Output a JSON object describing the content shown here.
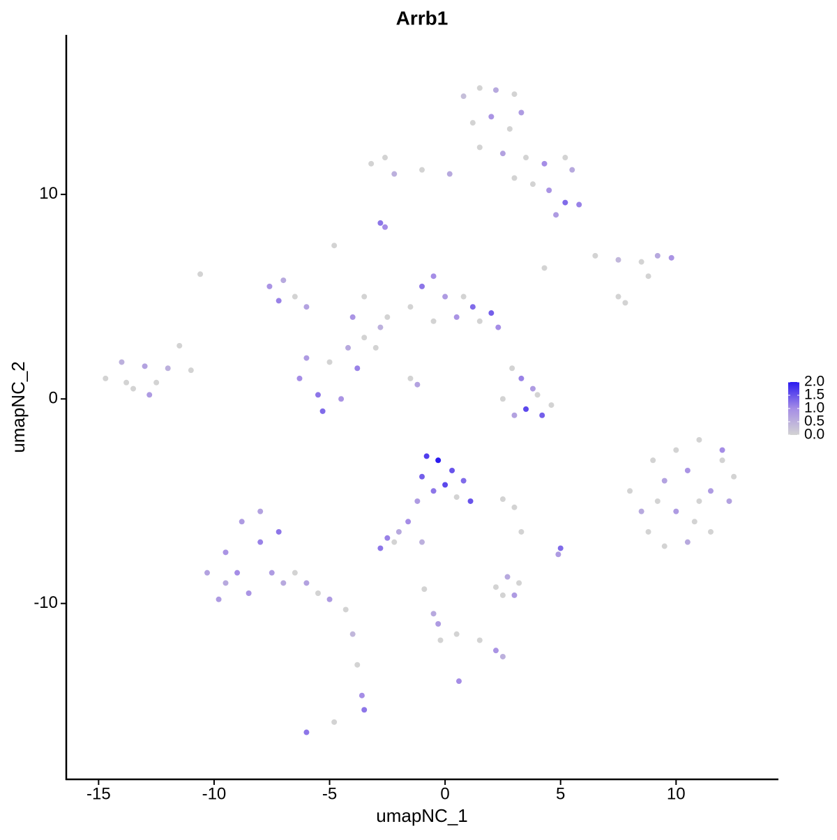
{
  "chart_data": {
    "type": "scatter",
    "title": "Arrb1",
    "x_label": "umapNC_1",
    "y_label": "umapNC_2",
    "xlim": [
      -16.4,
      14.4
    ],
    "ylim": [
      -18.6,
      17.8
    ],
    "xticks": [
      -15,
      -10,
      -5,
      0,
      5,
      10
    ],
    "yticks": [
      -10,
      0,
      10
    ],
    "colorbar": {
      "lim": [
        0,
        2
      ],
      "colors": [
        "#d3d3d3",
        "#a58de6",
        "#2b1bf0"
      ],
      "ticks": [
        {
          "value": 0,
          "label": "0.0"
        },
        0.5,
        {
          "value": 1,
          "label": "1.0"
        },
        1.5,
        {
          "value": 2,
          "label": "2.0"
        }
      ]
    },
    "series": [
      {
        "x": [
          0.8,
          1.5,
          2.2,
          3.0,
          3.3,
          1.2,
          2.0,
          2.8,
          1.5,
          2.5,
          3.5,
          4.3,
          5.2,
          5.5,
          3.8,
          4.5,
          5.2,
          5.8,
          4.8,
          3.0,
          -3.2,
          -2.2,
          -1.0,
          0.2,
          -2.6,
          -2.8,
          -2.6,
          6.5,
          7.5,
          8.5,
          9.2,
          9.8,
          8.8,
          7.8,
          -14.7,
          -14.0,
          -13.5,
          -13.0,
          -12.5,
          -12.0,
          -11.5,
          -11.0,
          -12.8,
          -13.8,
          -7.6,
          -7.0,
          -6.5,
          -7.2,
          -6.0,
          -6.3,
          -5.5,
          -4.5,
          -3.8,
          -5.0,
          -6.0,
          -4.2,
          -5.3,
          -3.5,
          -2.8,
          -3.0,
          -2.5,
          -4.0,
          -4.8,
          -3.5,
          -1.5,
          -1.2,
          -1.0,
          -0.5,
          0.0,
          -1.5,
          0.5,
          1.2,
          2.0,
          2.3,
          1.5,
          -0.5,
          0.8,
          2.9,
          3.3,
          3.8,
          2.5,
          3.5,
          4.2,
          4.6,
          3.0,
          4.0,
          8.0,
          8.5,
          9.0,
          9.5,
          10.0,
          10.5,
          11.0,
          11.5,
          12.0,
          12.5,
          12.3,
          11.5,
          10.5,
          9.5,
          8.8,
          10.0,
          11.0,
          9.2,
          12.0,
          10.8,
          -10.3,
          -9.8,
          -9.5,
          -9.0,
          -8.8,
          -8.5,
          -8.0,
          -8.0,
          -7.5,
          -7.2,
          -7.0,
          -6.5,
          -6.0,
          -5.5,
          -5.0,
          -4.3,
          -9.5,
          -4.0,
          -3.8,
          -3.6,
          -3.5,
          -6.0,
          -4.8,
          -0.8,
          -0.3,
          0.3,
          -1.0,
          0.0,
          0.8,
          1.1,
          0.5,
          -0.5,
          -1.2,
          -1.6,
          -2.0,
          -2.5,
          -2.8,
          -2.2,
          -1.0,
          2.5,
          3.0,
          5.0,
          4.9,
          3.3,
          2.2,
          2.7,
          3.0,
          2.5,
          3.2,
          -0.9,
          -0.5,
          -0.2,
          -0.3,
          0.5,
          1.5,
          2.2,
          2.5,
          0.6,
          -10.6,
          4.3,
          7.5
        ],
        "y": [
          14.8,
          15.2,
          15.1,
          14.9,
          14.0,
          13.5,
          13.8,
          13.2,
          12.3,
          12.0,
          11.8,
          11.5,
          11.8,
          11.2,
          10.5,
          10.2,
          9.6,
          9.5,
          9.0,
          10.8,
          11.5,
          11.0,
          11.2,
          11.0,
          11.8,
          8.6,
          8.4,
          7.0,
          6.8,
          6.7,
          7.0,
          6.9,
          6.0,
          4.7,
          1.0,
          1.8,
          0.5,
          1.6,
          0.8,
          1.5,
          2.6,
          1.4,
          0.2,
          0.8,
          5.5,
          5.8,
          5.0,
          4.8,
          4.5,
          1.0,
          0.2,
          0.0,
          1.5,
          1.8,
          2.0,
          2.5,
          -0.6,
          3.0,
          3.5,
          2.5,
          4.0,
          4.0,
          7.5,
          5.0,
          1.0,
          0.7,
          5.5,
          6.0,
          5.0,
          4.5,
          4.0,
          4.5,
          4.2,
          3.5,
          3.8,
          3.8,
          5.0,
          1.5,
          1.0,
          0.5,
          0.0,
          -0.5,
          -0.8,
          -0.3,
          -0.8,
          0.2,
          -4.5,
          -5.5,
          -3.0,
          -4.0,
          -2.5,
          -3.5,
          -2.0,
          -4.5,
          -3.0,
          -3.8,
          -5.0,
          -6.5,
          -7.0,
          -7.2,
          -6.5,
          -5.5,
          -5.0,
          -5.0,
          -2.5,
          -6.0,
          -8.5,
          -9.8,
          -7.5,
          -8.5,
          -6.0,
          -9.5,
          -7.0,
          -5.5,
          -8.5,
          -6.5,
          -9.0,
          -8.5,
          -9.0,
          -9.5,
          -9.8,
          -10.3,
          -9.0,
          -11.5,
          -13.0,
          -14.5,
          -15.2,
          -16.3,
          -15.8,
          -2.8,
          -3.0,
          -3.5,
          -3.8,
          -4.2,
          -4.0,
          -5.0,
          -4.8,
          -4.5,
          -5.0,
          -6.0,
          -6.5,
          -6.8,
          -7.3,
          -7.0,
          -7.0,
          -4.9,
          -5.3,
          -7.3,
          -7.6,
          -6.5,
          -9.2,
          -8.7,
          -9.6,
          -9.6,
          -9.0,
          -9.3,
          -10.5,
          -11.8,
          -11.0,
          -11.5,
          -11.8,
          -12.3,
          -12.6,
          -13.8,
          6.1,
          6.4,
          5.0
        ],
        "expression": [
          0.3,
          0,
          0.6,
          0,
          0.8,
          0,
          0.9,
          0,
          0,
          0.7,
          0,
          1.0,
          0,
          0.6,
          0,
          0.9,
          1.3,
          1.1,
          0.8,
          0,
          0,
          0.5,
          0,
          0.6,
          0,
          1.2,
          1.0,
          0,
          0.4,
          0,
          0.6,
          0.9,
          0,
          0,
          0,
          0.5,
          0,
          0.7,
          0,
          0.5,
          0,
          0,
          0.8,
          0,
          0.9,
          0.6,
          0,
          1.1,
          0.7,
          1.0,
          1.2,
          0.9,
          1.1,
          0,
          0.8,
          0.6,
          1.3,
          0,
          0.5,
          0,
          0,
          0.9,
          0,
          0,
          0,
          0.7,
          1.2,
          1.0,
          0.8,
          0,
          0.9,
          1.3,
          1.4,
          1.0,
          0,
          0,
          0,
          0,
          1.1,
          0.8,
          0,
          1.6,
          1.4,
          0,
          0.7,
          0,
          0,
          0.6,
          0,
          0.7,
          0,
          0.9,
          0,
          0.8,
          0,
          0,
          0.7,
          0,
          0.6,
          0,
          0,
          0.8,
          0,
          0,
          1.0,
          0,
          0.7,
          0.8,
          0.9,
          1.0,
          0.8,
          0.9,
          1.1,
          0.7,
          0.8,
          1.2,
          0.6,
          0,
          0.7,
          0,
          0.8,
          0,
          0.6,
          0.4,
          0,
          1.0,
          1.2,
          1.2,
          0,
          1.7,
          2.0,
          1.5,
          1.4,
          1.6,
          1.3,
          1.5,
          0,
          1.2,
          0.8,
          1.0,
          0.6,
          1.1,
          1.2,
          0,
          0.5,
          0,
          0,
          1.3,
          0.8,
          0,
          0,
          0.6,
          0.8,
          0,
          0,
          0,
          0.6,
          0,
          0.8,
          0,
          0,
          0.9,
          0.5,
          1.0,
          0,
          0,
          0
        ]
      }
    ]
  }
}
